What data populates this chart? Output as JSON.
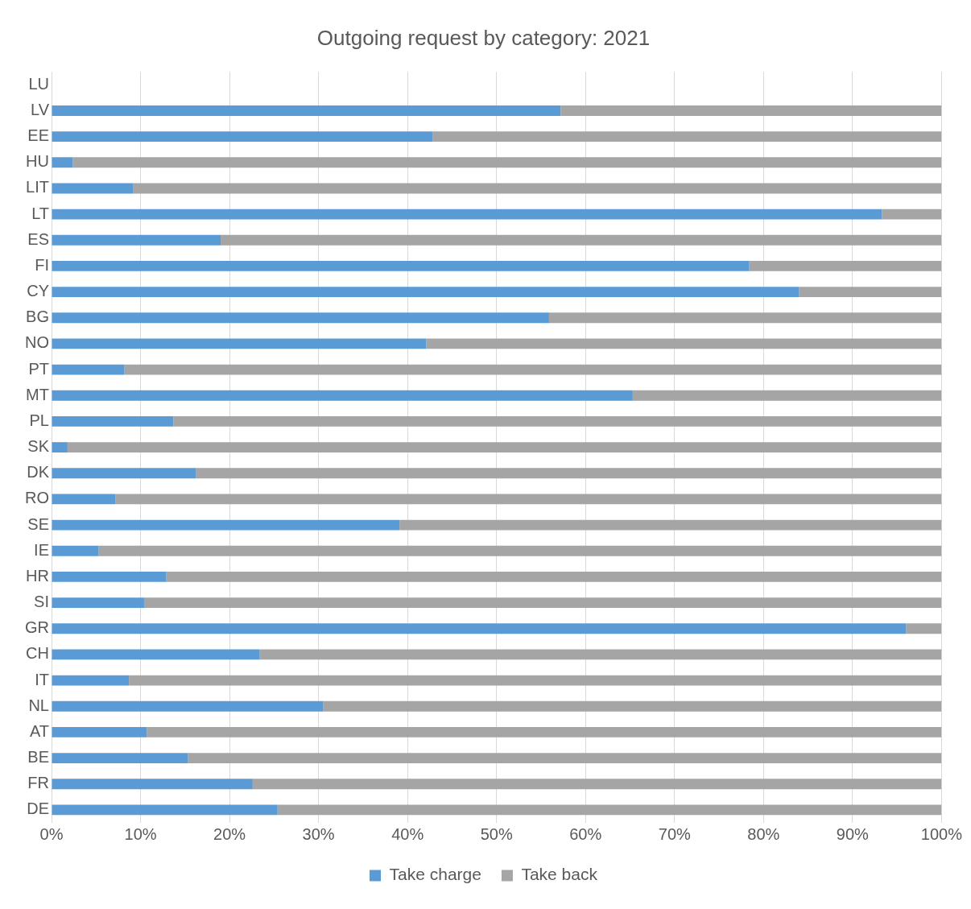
{
  "chart_data": {
    "type": "bar",
    "title": "Outgoing request by category: 2021",
    "orientation": "horizontal",
    "stacked": true,
    "categories": [
      "LU",
      "LV",
      "EE",
      "HU",
      "LIT",
      "LT",
      "ES",
      "FI",
      "CY",
      "BG",
      "NO",
      "PT",
      "MT",
      "PL",
      "SK",
      "DK",
      "RO",
      "SE",
      "IE",
      "HR",
      "SI",
      "GR",
      "CH",
      "IT",
      "NL",
      "AT",
      "BE",
      "FR",
      "DE"
    ],
    "series": [
      {
        "name": "Take charge",
        "color": "#5b9bd5",
        "values": [
          null,
          57.2,
          42.8,
          2.4,
          9.2,
          93.3,
          19.0,
          78.4,
          84.0,
          55.9,
          42.1,
          8.2,
          65.3,
          13.7,
          1.8,
          16.2,
          7.2,
          39.1,
          5.3,
          12.9,
          10.4,
          96.0,
          23.4,
          8.7,
          30.5,
          10.7,
          15.3,
          22.6,
          25.4
        ]
      },
      {
        "name": "Take back",
        "color": "#a5a5a5",
        "values": [
          null,
          42.8,
          57.2,
          97.6,
          90.8,
          6.7,
          81.0,
          21.6,
          16.0,
          44.1,
          57.9,
          91.8,
          34.7,
          86.3,
          98.2,
          83.8,
          92.8,
          60.9,
          94.7,
          87.1,
          89.6,
          4.0,
          76.6,
          91.3,
          69.5,
          89.3,
          84.7,
          77.4,
          74.6
        ]
      }
    ],
    "xlim": [
      0,
      100
    ],
    "xticks": [
      {
        "value": 0,
        "label": "0%"
      },
      {
        "value": 10,
        "label": "10%"
      },
      {
        "value": 20,
        "label": "20%"
      },
      {
        "value": 30,
        "label": "30%"
      },
      {
        "value": 40,
        "label": "40%"
      },
      {
        "value": 50,
        "label": "50%"
      },
      {
        "value": 60,
        "label": "60%"
      },
      {
        "value": 70,
        "label": "70%"
      },
      {
        "value": 80,
        "label": "80%"
      },
      {
        "value": 90,
        "label": "90%"
      },
      {
        "value": 100,
        "label": "100%"
      }
    ],
    "grid": "x",
    "legend": "bottom"
  }
}
